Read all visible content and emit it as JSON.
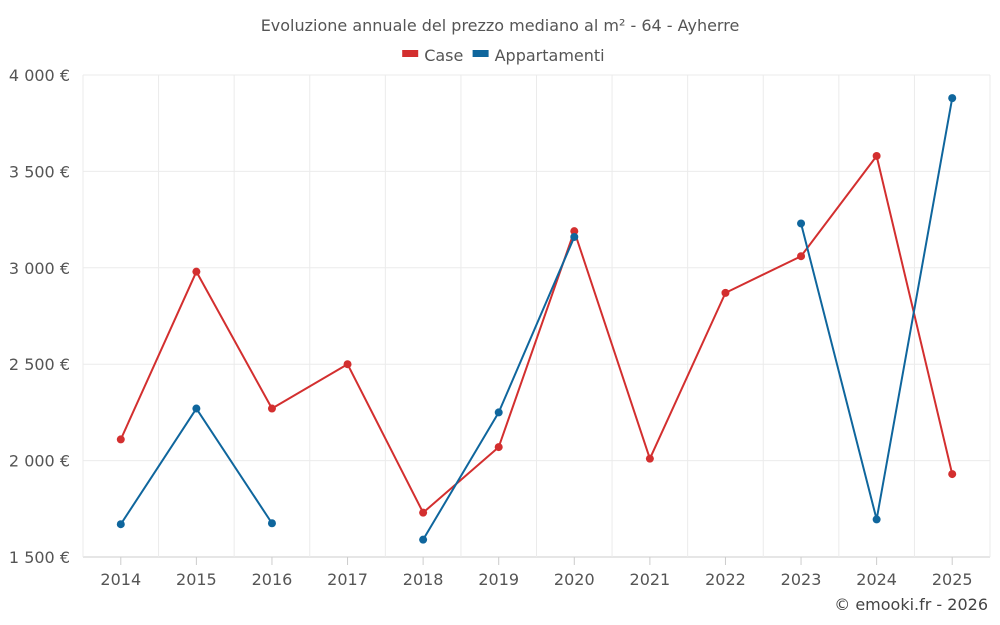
{
  "chart_data": {
    "type": "line",
    "title": "Evoluzione annuale del prezzo mediano al m² - 64 - Ayherre",
    "x": [
      "2014",
      "2015",
      "2016",
      "2017",
      "2018",
      "2019",
      "2020",
      "2021",
      "2022",
      "2023",
      "2024",
      "2025"
    ],
    "y_ticks": [
      1500,
      2000,
      2500,
      3000,
      3500,
      4000
    ],
    "y_tick_labels": [
      "1 500 €",
      "2 000 €",
      "2 500 €",
      "3 000 €",
      "3 500 €",
      "4 000 €"
    ],
    "ylim": [
      1500,
      4000
    ],
    "grid": true,
    "legend_position": "top",
    "series": [
      {
        "name": "Case",
        "color": "#d32f2f",
        "values": [
          2110,
          2980,
          2270,
          2500,
          1730,
          2070,
          3190,
          2010,
          2870,
          3060,
          3580,
          1930
        ]
      },
      {
        "name": "Appartamenti",
        "color": "#0f669d",
        "values": [
          1670,
          2270,
          1675,
          null,
          1590,
          2250,
          3160,
          null,
          null,
          3230,
          1695,
          3880
        ]
      }
    ],
    "credit": "© emooki.fr - 2026"
  }
}
